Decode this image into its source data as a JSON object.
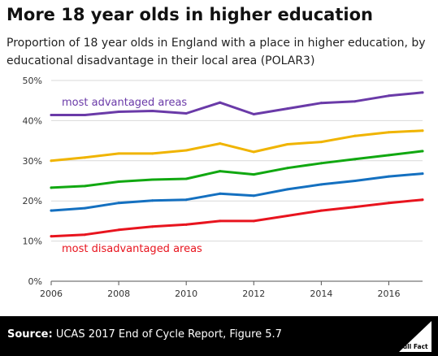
{
  "title": "More 18 year olds in higher education",
  "subtitle": "Proportion of 18 year olds in England with a place in higher education, by educational disadvantage in their local area (POLAR3)",
  "footer": {
    "source_label": "Source:",
    "source_text": "UCAS 2017 End of Cycle Report, Figure 5.7",
    "logo_text": "Full Fact"
  },
  "chart_data": {
    "type": "line",
    "x": [
      2006,
      2007,
      2008,
      2009,
      2010,
      2011,
      2012,
      2013,
      2014,
      2015,
      2016,
      2017
    ],
    "xticks": [
      2006,
      2008,
      2010,
      2012,
      2014,
      2016
    ],
    "xtick_labels": [
      "2006",
      "2008",
      "2010",
      "2012",
      "2014",
      "2016"
    ],
    "xlim": [
      2006,
      2017
    ],
    "ylim": [
      0,
      50
    ],
    "yticks": [
      0,
      10,
      20,
      30,
      40,
      50
    ],
    "ytick_labels": [
      "0%",
      "10%",
      "20%",
      "30%",
      "40%",
      "50%"
    ],
    "grid": true,
    "series": [
      {
        "name": "most advantaged areas",
        "color": "#6a3aa8",
        "values": [
          41.4,
          41.4,
          42.2,
          42.4,
          41.8,
          44.5,
          41.6,
          43.0,
          44.4,
          44.8,
          46.2,
          47.0
        ]
      },
      {
        "color": "#f0b400",
        "values": [
          30.0,
          30.8,
          31.8,
          31.8,
          32.6,
          34.3,
          32.2,
          34.1,
          34.7,
          36.2,
          37.1,
          37.5
        ]
      },
      {
        "color": "#11a811",
        "values": [
          23.3,
          23.7,
          24.8,
          25.3,
          25.5,
          27.4,
          26.6,
          28.2,
          29.4,
          30.4,
          31.4,
          32.4
        ]
      },
      {
        "color": "#1470c0",
        "values": [
          17.6,
          18.2,
          19.5,
          20.1,
          20.3,
          21.8,
          21.3,
          22.9,
          24.1,
          25.0,
          26.1,
          26.8
        ]
      },
      {
        "name": "most disadvantaged areas",
        "color": "#e8141e",
        "values": [
          11.2,
          11.6,
          12.8,
          13.6,
          14.1,
          15.0,
          15.0,
          16.3,
          17.6,
          18.5,
          19.5,
          20.3
        ]
      }
    ]
  }
}
